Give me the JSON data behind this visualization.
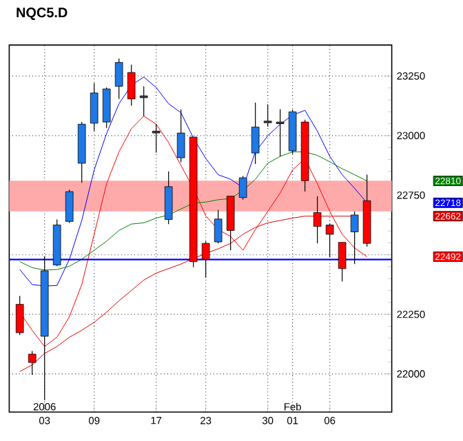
{
  "chart_data": {
    "type": "candlestick",
    "title": "NQC5.D",
    "categories": [
      null,
      null,
      "03",
      null,
      null,
      null,
      "09",
      null,
      null,
      null,
      null,
      "17",
      null,
      null,
      null,
      "23",
      null,
      null,
      null,
      null,
      "30",
      null,
      "01",
      null,
      null,
      "06",
      null,
      null,
      null
    ],
    "ohlc": [
      [
        22292,
        22327,
        22163,
        22173
      ],
      [
        22083,
        22096,
        21996,
        22048
      ],
      [
        22158,
        22494,
        21890,
        22433
      ],
      [
        22457,
        22648,
        22452,
        22625
      ],
      [
        22640,
        22773,
        22634,
        22765
      ],
      [
        22884,
        23057,
        22802,
        23048
      ],
      [
        23052,
        23221,
        23019,
        23179
      ],
      [
        23057,
        23202,
        23032,
        23196
      ],
      [
        23207,
        23323,
        23154,
        23307
      ],
      [
        23265,
        23298,
        23125,
        23154
      ],
      [
        23167,
        23207,
        23081,
        23159
      ],
      [
        23019,
        23048,
        22929,
        23011
      ],
      [
        22648,
        22850,
        22629,
        22786
      ],
      [
        22907,
        23109,
        22888,
        23011
      ],
      [
        22994,
        22994,
        22448,
        22471
      ],
      [
        22548,
        22557,
        22404,
        22481
      ],
      [
        22554,
        22688,
        22548,
        22650
      ],
      [
        22746,
        22746,
        22519,
        22602
      ],
      [
        22740,
        22831,
        22731,
        22823
      ],
      [
        22927,
        23138,
        22881,
        23036
      ],
      [
        23061,
        23131,
        23038,
        23054
      ],
      [
        23057,
        23111,
        22913,
        23050
      ],
      [
        22936,
        23109,
        22923,
        23100
      ],
      [
        23057,
        23067,
        22765,
        22811
      ],
      [
        22677,
        22746,
        22548,
        22619
      ],
      [
        22625,
        22631,
        22490,
        22586
      ],
      [
        22552,
        22552,
        22388,
        22442
      ],
      [
        22596,
        22682,
        22461,
        22667
      ],
      [
        22727,
        22836,
        22534,
        22548
      ]
    ],
    "colors": [
      "#ff0000",
      "#ff0000",
      "#1e78e6",
      "#1e78e6",
      "#1e78e6",
      "#1e78e6",
      "#1e78e6",
      "#1e78e6",
      "#1e78e6",
      "#ff0000",
      "#404040",
      "#404040",
      "#1e78e6",
      "#1e78e6",
      "#ff0000",
      "#ff0000",
      "#1e78e6",
      "#ff0000",
      "#1e78e6",
      "#1e78e6",
      "#404040",
      "#404040",
      "#1e78e6",
      "#ff0000",
      "#ff0000",
      "#ff0000",
      "#ff0000",
      "#1e78e6",
      "#ff0000"
    ],
    "series": [
      {
        "type": "line",
        "color": "#0000ff",
        "values": [
          22438,
          22375,
          22369,
          22371,
          22481,
          22644,
          22856,
          23009,
          23134,
          23211,
          23246,
          23202,
          23134,
          23096,
          22990,
          22904,
          22836,
          22817,
          22782,
          22932,
          22999,
          23048,
          23086,
          23106,
          23019,
          22913,
          22836,
          22779,
          22718
        ]
      },
      {
        "type": "line",
        "color": "#ff0000",
        "values": [
          22259,
          22183,
          22115,
          22154,
          22240,
          22375,
          22586,
          22798,
          22932,
          23029,
          23082,
          23048,
          22971,
          22875,
          22779,
          22663,
          22606,
          22577,
          22519,
          22606,
          22682,
          22759,
          22856,
          22904,
          22798,
          22682,
          22586,
          22529,
          22492
        ]
      },
      {
        "type": "line",
        "color": "#008000",
        "values": [
          22471,
          22446,
          22436,
          22438,
          22452,
          22481,
          22519,
          22557,
          22602,
          22629,
          22634,
          22654,
          22667,
          22692,
          22717,
          22721,
          22731,
          22736,
          22769,
          22817,
          22884,
          22913,
          22932,
          22932,
          22917,
          22890,
          22861,
          22836,
          22810
        ]
      },
      {
        "type": "line",
        "color": "#e00000",
        "values": [
          22010,
          22038,
          22086,
          22115,
          22154,
          22183,
          22217,
          22259,
          22307,
          22350,
          22394,
          22423,
          22442,
          22461,
          22484,
          22506,
          22525,
          22548,
          22586,
          22615,
          22634,
          22644,
          22654,
          22662,
          22662,
          22662,
          22662,
          22662,
          null
        ]
      }
    ],
    "ylim": [
      21840,
      23380
    ],
    "yticks": [
      22000,
      22250,
      {
        "value": 22500,
        "label": null
      },
      22750,
      23000,
      23250
    ],
    "grid": true,
    "ref_lines": [
      {
        "axis": "y",
        "value": 22480,
        "color": "#0000ff"
      }
    ],
    "bands": [
      {
        "axis": "y",
        "from": 22682,
        "to": 22811,
        "color": "#ffaaaa"
      }
    ],
    "annotations": [
      "2006",
      "Feb",
      "22810",
      "22718",
      "22662",
      "22492"
    ]
  }
}
